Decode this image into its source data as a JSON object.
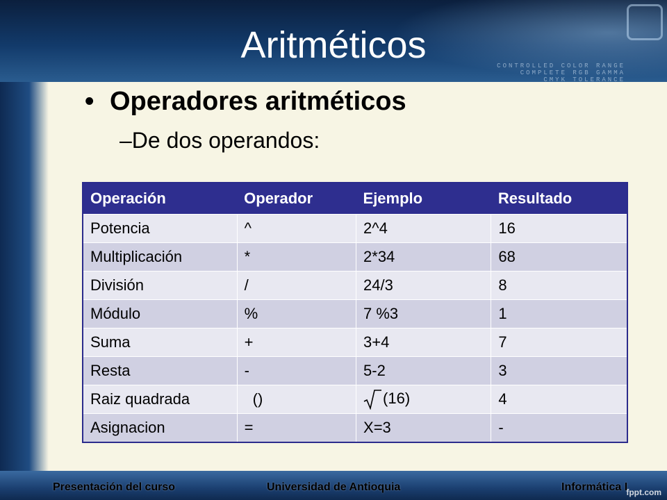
{
  "slide": {
    "title": "Aritméticos",
    "bullet": "Operadores aritméticos",
    "sub_item": "De dos operandos:",
    "sub_dash": "–"
  },
  "table": {
    "headers": [
      "Operación",
      "Operador",
      "Ejemplo",
      "Resultado"
    ],
    "rows": [
      [
        "Potencia",
        "^",
        "2^4",
        "16"
      ],
      [
        "Multiplicación",
        "*",
        "2*34",
        "68"
      ],
      [
        "División",
        "/",
        "24/3",
        "8"
      ],
      [
        "Módulo",
        "%",
        "7 %3",
        "1"
      ],
      [
        "Suma",
        "+",
        "3+4",
        "7"
      ],
      [
        "Resta",
        "-",
        "5-2",
        "3"
      ],
      [
        "Raiz quadrada",
        "()",
        "(16)",
        "4"
      ],
      [
        "Asignacion",
        "=",
        "X=3",
        "-"
      ]
    ]
  },
  "footer": {
    "left": "Presentación del curso",
    "center": "Universidad de Antioquia",
    "right": "Informática I"
  },
  "background_art": {
    "text": [
      "CONTROLLED COLOR RANGE",
      "COMPLETE RGB GAMMA",
      "CMYK TOLERANCE"
    ]
  },
  "watermark": "fppt.com",
  "colors": {
    "header_bg": "#2e2e8f",
    "row_light": "#e8e8f1",
    "row_dark": "#d0d0e2",
    "band_dark": "#0b1f3d",
    "slide_bg": "#f7f5e4"
  }
}
